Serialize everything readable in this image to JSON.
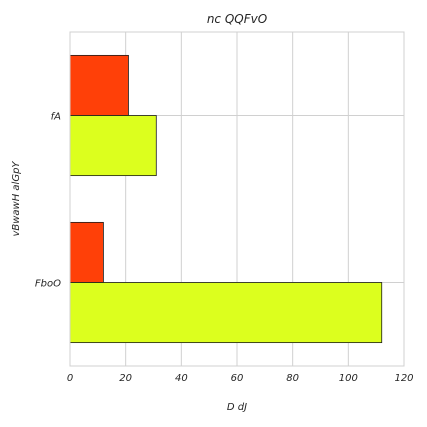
{
  "chart_data": {
    "type": "bar",
    "orientation": "horizontal",
    "title": "nc QQFvO",
    "xlabel": "D dJ",
    "ylabel": "vBwawH alGpY",
    "categories": [
      "fA",
      "FboO"
    ],
    "series": [
      {
        "values": [
          21,
          12
        ],
        "color": "#ff4008"
      },
      {
        "values": [
          31,
          112
        ],
        "color": "#dcff1e"
      }
    ],
    "xlim": [
      0,
      120
    ],
    "xticks": [
      "0",
      "20",
      "40",
      "60",
      "80",
      "100",
      "120"
    ],
    "grid": true
  }
}
